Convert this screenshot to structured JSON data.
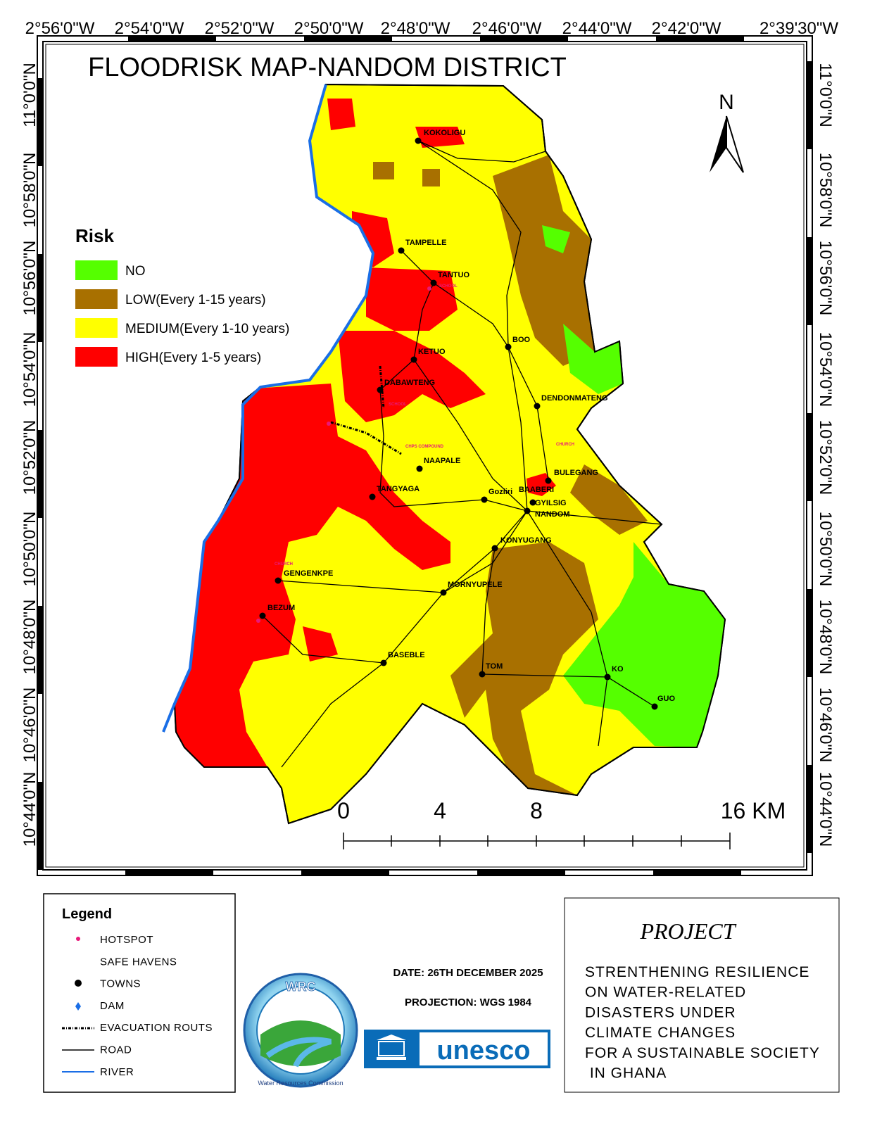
{
  "header": {
    "title": "FLOODRISK MAP-NANDOM DISTRICT"
  },
  "graticule": {
    "top": [
      "2°56'0\"W",
      "2°54'0\"W",
      "2°52'0\"W",
      "2°50'0\"W",
      "2°48'0\"W",
      "2°46'0\"W",
      "2°44'0\"W",
      "2°42'0\"W",
      "2°39'30\"W"
    ],
    "left": [
      "11°0'0\"N",
      "10°58'0\"N",
      "10°56'0\"N",
      "10°54'0\"N",
      "10°52'0\"N",
      "10°50'0\"N",
      "10°48'0\"N",
      "10°46'0\"N",
      "10°44'0\"N"
    ],
    "right": [
      "11°0'0\"N",
      "10°58'0\"N",
      "10°56'0\"N",
      "10°54'0\"N",
      "10°52'0\"N",
      "10°50'0\"N",
      "10°48'0\"N",
      "10°46'0\"N",
      "10°44'0\"N"
    ]
  },
  "north_arrow": "N",
  "risk_legend": {
    "title": "Risk",
    "items": [
      {
        "label": "NO",
        "color": "#55ff00"
      },
      {
        "label": "LOW(Every 1-15 years)",
        "color": "#a87000"
      },
      {
        "label": "MEDIUM(Every 1-10 years)",
        "color": "#ffff00"
      },
      {
        "label": "HIGH(Every 1-5 years)",
        "color": "#ff0000"
      }
    ]
  },
  "towns": [
    "KOKOLIGU",
    "TAMPELLE",
    "TANTUO",
    "BOO",
    "KETUO",
    "DABAWTENG",
    "DENDONMATENG",
    "NAAPALE",
    "TANGYAGA",
    "Goziiri",
    "BAABERI",
    "BULEGANG",
    "GYILSIG",
    "NANDOM",
    "KONYUGANG",
    "GENGENKPE",
    "MORNYUPELE",
    "BEZUM",
    "BASEBLE",
    "TOM",
    "KO",
    "GUO"
  ],
  "facilities": [
    "SCHOOL",
    "SCHOOL",
    "CHPS COMPOUND",
    "CHURCH",
    "CHURCH"
  ],
  "scale_bar": {
    "labels": [
      "0",
      "4",
      "8",
      "16 KM"
    ]
  },
  "legend": {
    "title": "Legend",
    "items": [
      "HOTSPOT",
      "SAFE HAVENS",
      "TOWNS",
      "DAM",
      "EVACUATION ROUTS",
      "ROAD",
      "RIVER"
    ]
  },
  "info": {
    "date": "DATE: 26TH DECEMBER 2025",
    "projection": "PROJECTION: WGS 1984"
  },
  "logos": {
    "wrc": "WRC",
    "wrc_name": "Water Resources Commission",
    "unesco": "unesco"
  },
  "project": {
    "title": "PROJECT",
    "lines": [
      "STRENTHENING RESILIENCE",
      "ON WATER-RELATED",
      "DISASTERS UNDER",
      "CLIMATE CHANGES",
      "FOR A SUSTAINABLE SOCIETY",
      " IN GHANA"
    ]
  }
}
